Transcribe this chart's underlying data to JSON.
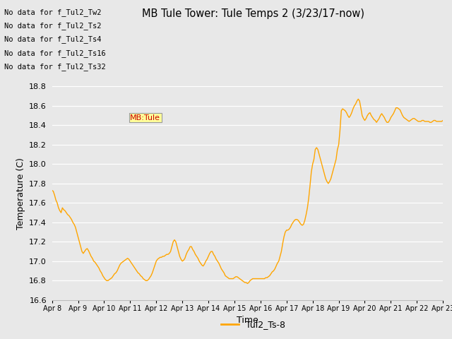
{
  "title": "MB Tule Tower: Tule Temps 2 (3/23/17-now)",
  "xlabel": "Time",
  "ylabel": "Temperature (C)",
  "line_color": "#FFA500",
  "line_label": "Tul2_Ts-8",
  "bg_color": "#E8E8E8",
  "ylim": [
    16.6,
    18.8
  ],
  "yticks": [
    16.6,
    16.8,
    17.0,
    17.2,
    17.4,
    17.6,
    17.8,
    18.0,
    18.2,
    18.4,
    18.6,
    18.8
  ],
  "xtick_labels": [
    "Apr 8",
    "Apr 9",
    "Apr 10",
    "Apr 11",
    "Apr 12",
    "Apr 13",
    "Apr 14",
    "Apr 15",
    "Apr 16",
    "Apr 17",
    "Apr 18",
    "Apr 19",
    "Apr 20",
    "Apr 21",
    "Apr 22",
    "Apr 23"
  ],
  "no_data_texts": [
    "No data for f_Tul2_Tw2",
    "No data for f_Tul2_Ts2",
    "No data for f_Tul2_Ts4",
    "No data for f_Tul2_Ts16",
    "No data for f_Tul2_Ts32"
  ],
  "tooltip_text": "MB:Tule",
  "tooltip_color": "#CC0000",
  "tooltip_bg": "#FFFF99",
  "x_values": [
    0.0,
    0.05,
    0.1,
    0.15,
    0.2,
    0.25,
    0.3,
    0.35,
    0.4,
    0.45,
    0.5,
    0.55,
    0.6,
    0.65,
    0.7,
    0.75,
    0.8,
    0.85,
    0.9,
    0.95,
    1.0,
    1.05,
    1.1,
    1.15,
    1.2,
    1.25,
    1.3,
    1.35,
    1.4,
    1.45,
    1.5,
    1.55,
    1.6,
    1.65,
    1.7,
    1.75,
    1.8,
    1.85,
    1.9,
    1.95,
    2.0,
    2.05,
    2.1,
    2.15,
    2.2,
    2.25,
    2.3,
    2.35,
    2.4,
    2.45,
    2.5,
    2.55,
    2.6,
    2.65,
    2.7,
    2.75,
    2.8,
    2.85,
    2.9,
    2.95,
    3.0,
    3.05,
    3.1,
    3.15,
    3.2,
    3.25,
    3.3,
    3.35,
    3.4,
    3.45,
    3.5,
    3.55,
    3.6,
    3.65,
    3.7,
    3.75,
    3.8,
    3.85,
    3.9,
    3.95,
    4.0,
    4.05,
    4.1,
    4.15,
    4.2,
    4.25,
    4.3,
    4.35,
    4.4,
    4.45,
    4.5,
    4.55,
    4.6,
    4.65,
    4.7,
    4.75,
    4.8,
    4.85,
    4.9,
    4.95,
    5.0,
    5.05,
    5.1,
    5.15,
    5.2,
    5.25,
    5.3,
    5.35,
    5.4,
    5.45,
    5.5,
    5.55,
    5.6,
    5.65,
    5.7,
    5.75,
    5.8,
    5.85,
    5.9,
    5.95,
    6.0,
    6.05,
    6.1,
    6.15,
    6.2,
    6.25,
    6.3,
    6.35,
    6.4,
    6.45,
    6.5,
    6.55,
    6.6,
    6.65,
    6.7,
    6.75,
    6.8,
    6.85,
    6.9,
    6.95,
    7.0,
    7.05,
    7.1,
    7.15,
    7.2,
    7.25,
    7.3,
    7.35,
    7.4,
    7.45,
    7.5,
    7.55,
    7.6,
    7.65,
    7.7,
    7.75,
    7.8,
    7.85,
    7.9,
    7.95,
    8.0,
    8.05,
    8.1,
    8.15,
    8.2,
    8.25,
    8.3,
    8.35,
    8.4,
    8.45,
    8.5,
    8.55,
    8.6,
    8.65,
    8.7,
    8.75,
    8.8,
    8.85,
    8.9,
    8.95,
    9.0,
    9.05,
    9.1,
    9.15,
    9.2,
    9.25,
    9.3,
    9.35,
    9.4,
    9.45,
    9.5,
    9.55,
    9.6,
    9.65,
    9.7,
    9.75,
    9.8,
    9.85,
    9.9,
    9.95,
    10.0,
    10.05,
    10.1,
    10.15,
    10.2,
    10.25,
    10.3,
    10.35,
    10.4,
    10.45,
    10.5,
    10.55,
    10.6,
    10.65,
    10.7,
    10.75,
    10.8,
    10.85,
    10.9,
    10.95,
    11.0,
    11.05,
    11.1,
    11.15,
    11.2,
    11.25,
    11.3,
    11.35,
    11.4,
    11.45,
    11.5,
    11.55,
    11.6,
    11.65,
    11.7,
    11.75,
    11.8,
    11.85,
    11.9,
    11.95,
    12.0,
    12.05,
    12.1,
    12.15,
    12.2,
    12.25,
    12.3,
    12.35,
    12.4,
    12.45,
    12.5,
    12.55,
    12.6,
    12.65,
    12.7,
    12.75,
    12.8,
    12.85,
    12.9,
    12.95,
    13.0,
    13.05,
    13.1,
    13.15,
    13.2,
    13.25,
    13.3,
    13.35,
    13.4,
    13.45,
    13.5,
    13.55,
    13.6,
    13.65,
    13.7,
    13.75,
    13.8,
    13.85,
    13.9,
    13.95,
    14.0,
    14.05,
    14.1,
    14.15,
    14.2,
    14.25,
    14.3,
    14.35,
    14.4,
    14.45,
    14.5,
    14.55,
    14.6,
    14.65,
    14.7,
    14.75,
    14.8,
    14.85,
    14.9,
    14.95,
    15.0
  ],
  "y_values": [
    17.73,
    17.72,
    17.68,
    17.63,
    17.6,
    17.55,
    17.52,
    17.5,
    17.55,
    17.53,
    17.52,
    17.5,
    17.48,
    17.47,
    17.45,
    17.43,
    17.4,
    17.38,
    17.35,
    17.3,
    17.25,
    17.2,
    17.15,
    17.1,
    17.08,
    17.1,
    17.12,
    17.13,
    17.11,
    17.08,
    17.05,
    17.03,
    17.0,
    16.99,
    16.97,
    16.95,
    16.93,
    16.9,
    16.88,
    16.85,
    16.83,
    16.81,
    16.8,
    16.8,
    16.81,
    16.82,
    16.83,
    16.85,
    16.87,
    16.88,
    16.9,
    16.93,
    16.96,
    16.98,
    16.99,
    17.0,
    17.01,
    17.02,
    17.03,
    17.02,
    17.0,
    16.98,
    16.96,
    16.94,
    16.92,
    16.9,
    16.88,
    16.87,
    16.85,
    16.84,
    16.82,
    16.81,
    16.8,
    16.8,
    16.81,
    16.83,
    16.85,
    16.88,
    16.92,
    16.96,
    17.0,
    17.02,
    17.03,
    17.04,
    17.04,
    17.05,
    17.05,
    17.06,
    17.07,
    17.07,
    17.08,
    17.1,
    17.15,
    17.2,
    17.22,
    17.2,
    17.15,
    17.1,
    17.05,
    17.02,
    17.0,
    17.01,
    17.03,
    17.07,
    17.1,
    17.12,
    17.15,
    17.15,
    17.12,
    17.1,
    17.07,
    17.05,
    17.03,
    17.0,
    16.98,
    16.96,
    16.95,
    16.97,
    17.0,
    17.02,
    17.05,
    17.08,
    17.1,
    17.1,
    17.07,
    17.05,
    17.02,
    17.0,
    16.98,
    16.95,
    16.92,
    16.9,
    16.88,
    16.85,
    16.84,
    16.83,
    16.82,
    16.82,
    16.82,
    16.82,
    16.83,
    16.84,
    16.84,
    16.83,
    16.82,
    16.81,
    16.8,
    16.79,
    16.78,
    16.78,
    16.77,
    16.78,
    16.8,
    16.81,
    16.82,
    16.82,
    16.82,
    16.82,
    16.82,
    16.82,
    16.82,
    16.82,
    16.82,
    16.82,
    16.83,
    16.83,
    16.84,
    16.85,
    16.87,
    16.89,
    16.9,
    16.92,
    16.95,
    16.98,
    17.0,
    17.05,
    17.1,
    17.18,
    17.25,
    17.3,
    17.32,
    17.32,
    17.33,
    17.35,
    17.38,
    17.4,
    17.42,
    17.43,
    17.43,
    17.42,
    17.4,
    17.38,
    17.37,
    17.38,
    17.42,
    17.48,
    17.55,
    17.65,
    17.78,
    17.92,
    18.0,
    18.05,
    18.15,
    18.17,
    18.15,
    18.1,
    18.05,
    18.0,
    17.95,
    17.9,
    17.85,
    17.82,
    17.8,
    17.82,
    17.85,
    17.9,
    17.95,
    18.0,
    18.05,
    18.15,
    18.2,
    18.35,
    18.55,
    18.57,
    18.56,
    18.55,
    18.53,
    18.5,
    18.48,
    18.5,
    18.53,
    18.57,
    18.6,
    18.62,
    18.65,
    18.67,
    18.65,
    18.58,
    18.5,
    18.47,
    18.45,
    18.47,
    18.5,
    18.52,
    18.53,
    18.5,
    18.48,
    18.46,
    18.45,
    18.43,
    18.45,
    18.47,
    18.5,
    18.52,
    18.5,
    18.48,
    18.45,
    18.43,
    18.43,
    18.45,
    18.48,
    18.5,
    18.52,
    18.55,
    18.58,
    18.58,
    18.57,
    18.56,
    18.53,
    18.5,
    18.48,
    18.47,
    18.46,
    18.45,
    18.44,
    18.45,
    18.46,
    18.47,
    18.47,
    18.46,
    18.45,
    18.44,
    18.44,
    18.44,
    18.45,
    18.45,
    18.44,
    18.44,
    18.44,
    18.44,
    18.43,
    18.43,
    18.44,
    18.45,
    18.45,
    18.44,
    18.44,
    18.44,
    18.44,
    18.44,
    18.45
  ]
}
